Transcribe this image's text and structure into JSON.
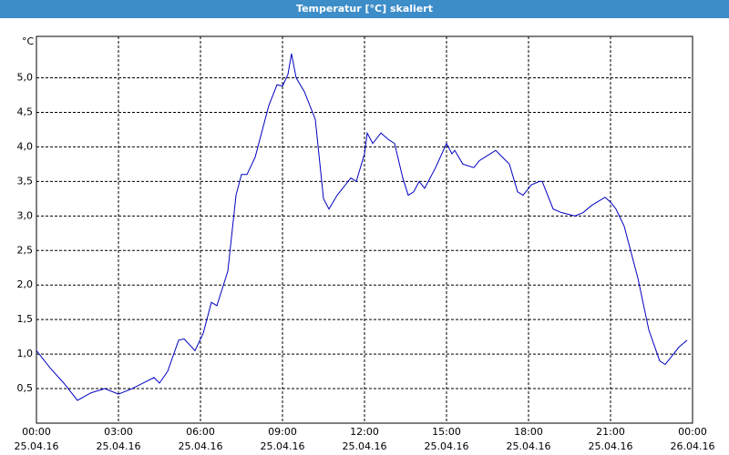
{
  "chart_data": {
    "type": "line",
    "title": "Temperatur [°C] skaliert",
    "y_unit": "°C",
    "x": [
      0,
      0.5,
      1,
      1.5,
      2,
      2.5,
      3,
      3.5,
      4,
      4.3,
      4.5,
      4.8,
      5.2,
      5.4,
      5.8,
      6.1,
      6.4,
      6.6,
      7.0,
      7.3,
      7.5,
      7.7,
      8.0,
      8.5,
      8.8,
      9.0,
      9.2,
      9.33,
      9.5,
      9.8,
      10.2,
      10.5,
      10.7,
      11,
      11.5,
      11.7,
      12,
      12.1,
      12.3,
      12.6,
      12.9,
      13.1,
      13.4,
      13.6,
      13.8,
      14,
      14.2,
      14.6,
      15,
      15.2,
      15.3,
      15.6,
      16,
      16.2,
      16.6,
      16.8,
      17.3,
      17.6,
      17.8,
      18.1,
      18.4,
      18.5,
      18.9,
      19.2,
      19.7,
      20,
      20.3,
      20.5,
      20.8,
      21,
      21.2,
      21.5,
      22,
      22.4,
      22.8,
      23,
      23.2,
      23.5,
      23.8
    ],
    "series": [
      {
        "name": "Temperatur",
        "color": "#0000c0",
        "values": [
          1.05,
          0.8,
          0.58,
          0.33,
          0.44,
          0.5,
          0.42,
          0.5,
          0.6,
          0.66,
          0.58,
          0.75,
          1.2,
          1.22,
          1.05,
          1.3,
          1.75,
          1.7,
          2.2,
          3.3,
          3.6,
          3.6,
          3.85,
          4.6,
          4.9,
          4.88,
          5.05,
          5.35,
          5.0,
          4.8,
          4.4,
          3.25,
          3.1,
          3.3,
          3.55,
          3.5,
          3.9,
          4.2,
          4.05,
          4.2,
          4.1,
          4.05,
          3.55,
          3.3,
          3.35,
          3.5,
          3.4,
          3.7,
          4.05,
          3.9,
          3.95,
          3.75,
          3.7,
          3.8,
          3.9,
          3.95,
          3.75,
          3.35,
          3.3,
          3.45,
          3.5,
          3.5,
          3.1,
          3.05,
          3.0,
          3.05,
          3.15,
          3.2,
          3.27,
          3.2,
          3.1,
          2.85,
          2.1,
          1.35,
          0.9,
          0.85,
          0.95,
          1.1,
          1.2
        ]
      }
    ],
    "xlim": [
      0,
      24
    ],
    "xticks": [
      {
        "value": 0,
        "label": "00:00"
      },
      {
        "value": 3,
        "label": "03:00"
      },
      {
        "value": 6,
        "label": "06:00"
      },
      {
        "value": 9,
        "label": "09:00"
      },
      {
        "value": 12,
        "label": "12:00"
      },
      {
        "value": 15,
        "label": "15:00"
      },
      {
        "value": 18,
        "label": "18:00"
      },
      {
        "value": 21,
        "label": "21:00"
      },
      {
        "value": 24,
        "label": "00:00"
      }
    ],
    "xtick_dates": [
      "25.04.16",
      "25.04.16",
      "25.04.16",
      "25.04.16",
      "25.04.16",
      "25.04.16",
      "25.04.16",
      "25.04.16",
      "26.04.16"
    ],
    "ylim": [
      0,
      5.6
    ],
    "yticks": [
      {
        "value": 0.5,
        "label": "0,5"
      },
      {
        "value": 1,
        "label": "1,0"
      },
      {
        "value": 1.5,
        "label": "1,5"
      },
      {
        "value": 2,
        "label": "2,0"
      },
      {
        "value": 2.5,
        "label": "2,5"
      },
      {
        "value": 3,
        "label": "3,0"
      },
      {
        "value": 3.5,
        "label": "3,5"
      },
      {
        "value": 4,
        "label": "4,0"
      },
      {
        "value": 4.5,
        "label": "4,5"
      },
      {
        "value": 5,
        "label": "5,0"
      }
    ],
    "grid": true
  }
}
